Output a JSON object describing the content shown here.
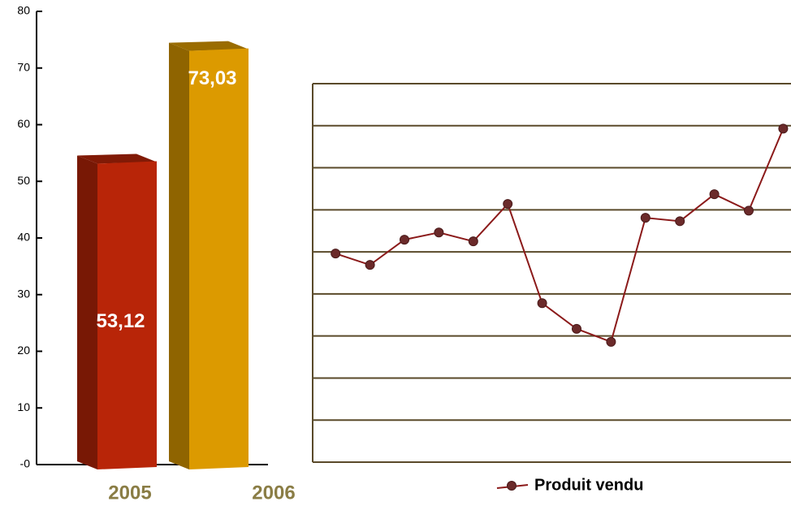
{
  "chart_data": [
    {
      "type": "bar3d",
      "categories": [
        "2005",
        "2006"
      ],
      "values": [
        53.12,
        73.03
      ],
      "value_labels": [
        "53,12",
        "73,03"
      ],
      "colors": [
        "#b82508",
        "#dc9a00"
      ],
      "ylim": [
        0,
        80
      ],
      "yticks": [
        {
          "value": 0,
          "label": "-0"
        },
        10,
        20,
        30,
        40,
        50,
        60,
        70,
        80
      ]
    },
    {
      "type": "line",
      "categories": [
        null,
        null,
        null,
        null,
        null,
        null,
        null,
        null,
        null,
        null,
        null,
        null,
        null,
        null
      ],
      "series": [
        {
          "name": "Produit vendu",
          "color": "#8b1a1a",
          "values": [
            4.96,
            4.69,
            5.29,
            5.46,
            5.25,
            6.14,
            3.78,
            3.17,
            2.86,
            5.81,
            5.73,
            6.37,
            5.98,
            7.93
          ]
        }
      ],
      "ylim": [
        0,
        9
      ],
      "yticks": [
        0,
        1,
        2,
        3,
        4,
        5,
        6,
        7,
        8,
        9
      ],
      "grid": true,
      "tick_labels": false,
      "legend": "bottom"
    }
  ]
}
